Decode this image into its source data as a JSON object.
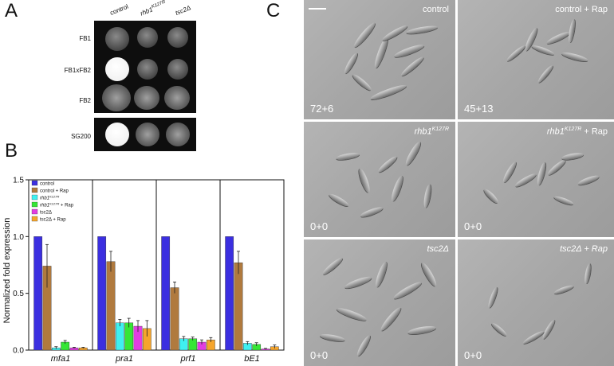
{
  "panels": {
    "a": {
      "letter": "A",
      "columns": [
        "control",
        "rhb1",
        "K127R",
        "tsc2Δ"
      ],
      "rows": [
        "FB1",
        "FB1xFB2",
        "FB2",
        "SG200"
      ]
    },
    "b": {
      "letter": "B"
    },
    "c": {
      "letter": "C",
      "images": [
        {
          "condition": "control",
          "count": "72+6"
        },
        {
          "condition": "control + Rap",
          "count": "45+13"
        },
        {
          "condition": "rhb1",
          "sup": "K127R",
          "count": "0+0"
        },
        {
          "condition": "rhb1",
          "sup": "K127R",
          "suffix": " + Rap",
          "count": "0+0"
        },
        {
          "condition": "tsc2Δ",
          "count": "0+0"
        },
        {
          "condition": "tsc2Δ + Rap",
          "count": "0+0"
        }
      ]
    }
  },
  "colors": {
    "control": "#3b2fe0",
    "control_rap": "#b07a3e",
    "rhb1": "#3ff0f0",
    "rhb1_rap": "#35e635",
    "tsc2": "#e23de2",
    "tsc2_rap": "#f5a52c"
  },
  "chart_data": {
    "type": "bar",
    "ylabel": "Normalized fold expression",
    "ylim": [
      0,
      1.5
    ],
    "yticks": [
      "0.0",
      "0.5",
      "1.0",
      "1.5"
    ],
    "categories": [
      "mfa1",
      "pra1",
      "prf1",
      "bE1"
    ],
    "legend_position": "top-left",
    "series": [
      {
        "name": "control",
        "values": [
          1.0,
          1.0,
          1.0,
          1.0
        ],
        "errors": [
          0,
          0,
          0,
          0
        ]
      },
      {
        "name": "control + Rap",
        "values": [
          0.74,
          0.78,
          0.55,
          0.77
        ],
        "errors": [
          0.19,
          0.09,
          0.05,
          0.1
        ]
      },
      {
        "name": "rhb1",
        "name_sup": "K127R",
        "values": [
          0.02,
          0.24,
          0.1,
          0.06
        ],
        "errors": [
          0.01,
          0.03,
          0.02,
          0.015
        ]
      },
      {
        "name": "rhb1",
        "name_sup": "K127R",
        "name_suffix": " + Rap",
        "values": [
          0.07,
          0.24,
          0.1,
          0.05
        ],
        "errors": [
          0.015,
          0.04,
          0.015,
          0.015
        ]
      },
      {
        "name": "tsc2Δ",
        "values": [
          0.02,
          0.21,
          0.07,
          0.01
        ],
        "errors": [
          0.005,
          0.05,
          0.02,
          0.005
        ]
      },
      {
        "name": "tsc2Δ + Rap",
        "values": [
          0.02,
          0.19,
          0.09,
          0.03
        ],
        "errors": [
          0.005,
          0.07,
          0.02,
          0.015
        ]
      }
    ]
  }
}
